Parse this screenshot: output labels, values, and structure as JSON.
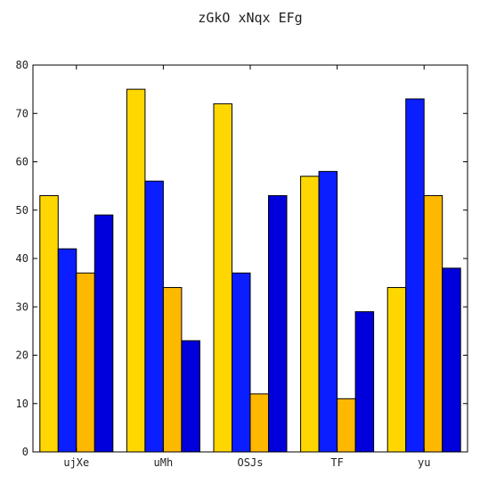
{
  "chart_data": {
    "type": "bar",
    "title": "zGkO xNqx EFg",
    "xlabel": "",
    "ylabel": "",
    "categories": [
      "ujXe",
      "uMh",
      "OSJs",
      "TF",
      "yu"
    ],
    "ylim": [
      0,
      80
    ],
    "yticks": [
      0,
      10,
      20,
      30,
      40,
      50,
      60,
      70,
      80
    ],
    "grid": false,
    "legend": "none",
    "series": [
      {
        "color": "#FFD700",
        "values": [
          53,
          75,
          72,
          57,
          34
        ]
      },
      {
        "color": "#0A1EFF",
        "values": [
          42,
          56,
          37,
          58,
          73
        ]
      },
      {
        "color": "#FFB800",
        "values": [
          37,
          34,
          12,
          11,
          53
        ]
      },
      {
        "color": "#0000DD",
        "values": [
          49,
          23,
          53,
          29,
          38
        ]
      }
    ]
  }
}
